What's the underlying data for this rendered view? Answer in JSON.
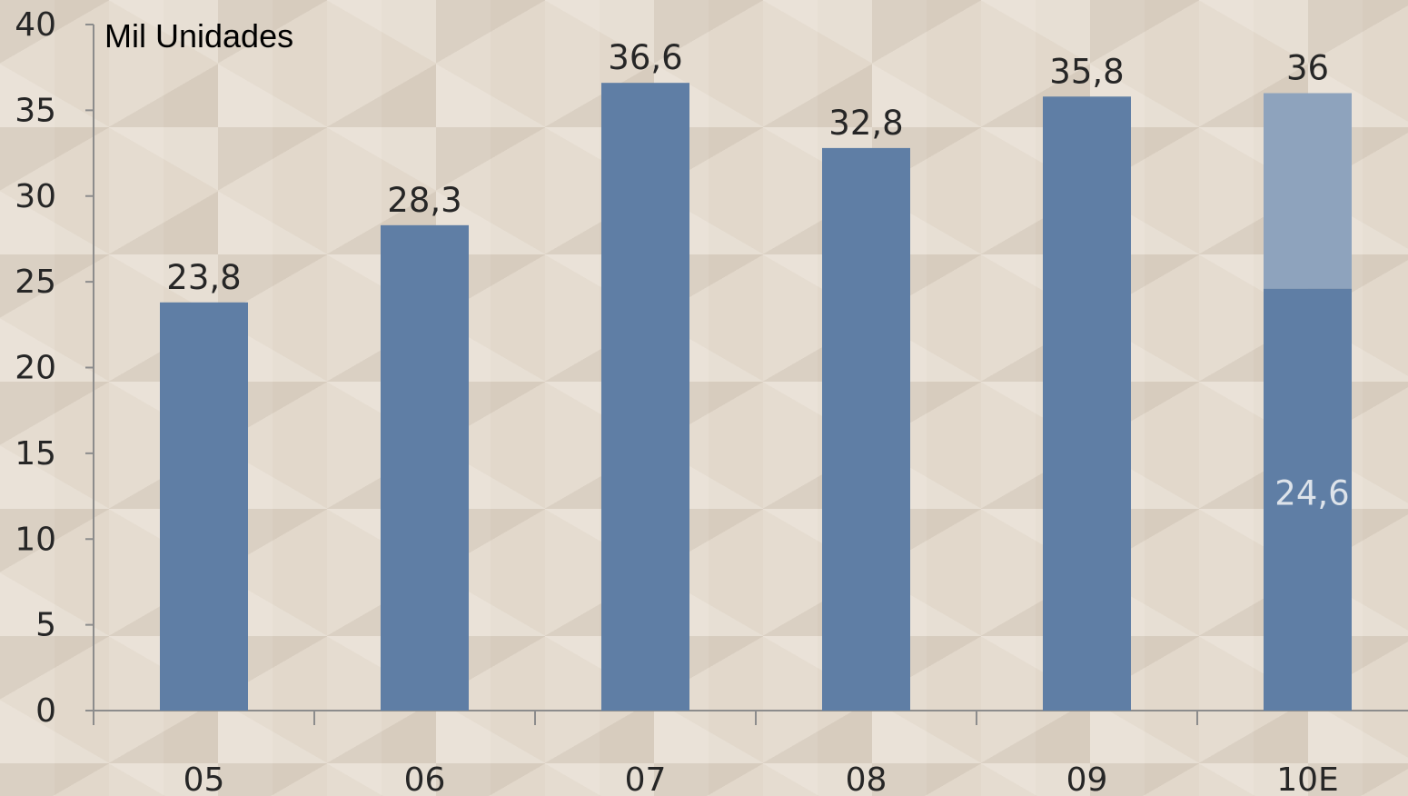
{
  "chart_data": {
    "type": "bar",
    "unit_label": "Mil Unidades",
    "categories": [
      "05",
      "06",
      "07",
      "08",
      "09",
      "10E"
    ],
    "values": [
      23.8,
      28.3,
      36.6,
      32.8,
      35.8,
      36
    ],
    "value_labels": [
      "23,8",
      "28,3",
      "36,6",
      "32,8",
      "35,8",
      "36"
    ],
    "inner_segment": {
      "category": "10E",
      "value": 24.6,
      "label": "24,6"
    },
    "ylim": [
      0,
      40
    ],
    "yticks": [
      0,
      5,
      10,
      15,
      20,
      25,
      30,
      35,
      40
    ],
    "grid": false,
    "legend": "none",
    "colors": {
      "bar": "#5f7ea5",
      "bar_estimate_upper": "#8ea3bd",
      "axis": "#8c8c8c",
      "inner_label": "#dde3ea"
    }
  }
}
